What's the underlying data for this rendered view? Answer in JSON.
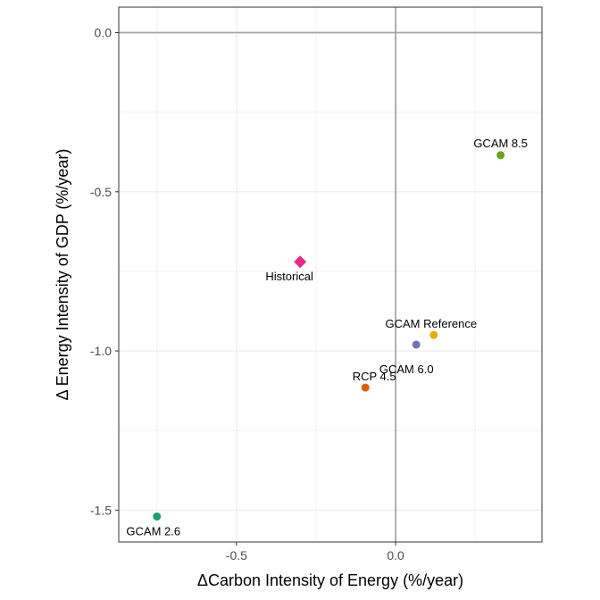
{
  "chart_data": {
    "type": "scatter",
    "xlabel": "ΔCarbon Intensity of Energy (%/year)",
    "ylabel": "Δ Energy Intensity of GDP (%/year)",
    "xlim": [
      -0.87,
      0.46
    ],
    "ylim": [
      -1.6,
      0.08
    ],
    "x_ticks": [
      -0.5,
      0.0
    ],
    "x_tick_labels": [
      "-0.5",
      "0.0"
    ],
    "y_ticks": [
      0.0,
      -0.5,
      -1.0,
      -1.5
    ],
    "y_tick_labels": [
      "0.0",
      "-0.5",
      "-1.0",
      "-1.5"
    ],
    "grid": true,
    "reference_lines": {
      "x": 0.0,
      "y": 0.0
    },
    "legend": "none",
    "points": [
      {
        "label": "GCAM 8.5",
        "x": 0.33,
        "y": -0.385,
        "color": "#66a61e",
        "shape": "circle"
      },
      {
        "label": "Historical",
        "x": -0.3,
        "y": -0.72,
        "color": "#e7298a",
        "shape": "diamond"
      },
      {
        "label": "GCAM Reference",
        "x": 0.12,
        "y": -0.95,
        "color": "#e6ab02",
        "shape": "circle"
      },
      {
        "label": "GCAM 6.0",
        "x": 0.065,
        "y": -0.98,
        "color": "#7570b3",
        "shape": "circle"
      },
      {
        "label": "RCP 4.5",
        "x": -0.095,
        "y": -1.115,
        "color": "#d95f02",
        "shape": "circle"
      },
      {
        "label": "GCAM 2.6",
        "x": -0.75,
        "y": -1.52,
        "color": "#1b9e77",
        "shape": "circle"
      }
    ]
  }
}
